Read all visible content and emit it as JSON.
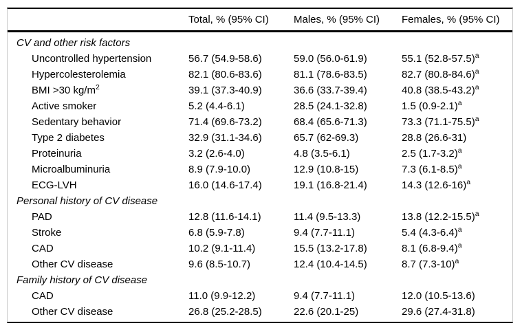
{
  "table": {
    "columns": [
      "",
      "Total, % (95% CI)",
      "Males, % (95% CI)",
      "Females, % (95% CI)"
    ],
    "sections": [
      {
        "title": "CV and other risk factors",
        "rows": [
          {
            "label": "Uncontrolled hypertension",
            "label_sup": "",
            "total": "56.7 (54.9-58.6)",
            "males": "59.0 (56.0-61.9)",
            "females": "55.1 (52.8-57.5)",
            "females_sup": "a"
          },
          {
            "label": "Hypercolesterolemia",
            "label_sup": "",
            "total": "82.1 (80.6-83.6)",
            "males": "81.1 (78.6-83.5)",
            "females": "82.7 (80.8-84.6)",
            "females_sup": "a"
          },
          {
            "label": "BMI >30 kg/m",
            "label_sup": "2",
            "total": "39.1 (37.3-40.9)",
            "males": "36.6 (33.7-39.4)",
            "females": "40.8 (38.5-43.2)",
            "females_sup": "a"
          },
          {
            "label": "Active smoker",
            "label_sup": "",
            "total": "5.2 (4.4-6.1)",
            "males": "28.5 (24.1-32.8)",
            "females": "1.5 (0.9-2.1)",
            "females_sup": "a"
          },
          {
            "label": "Sedentary behavior",
            "label_sup": "",
            "total": "71.4 (69.6-73.2)",
            "males": "68.4 (65.6-71.3)",
            "females": "73.3 (71.1-75.5)",
            "females_sup": "a"
          },
          {
            "label": "Type 2 diabetes",
            "label_sup": "",
            "total": "32.9 (31.1-34.6)",
            "males": "65.7 (62-69.3)",
            "females": "28.8 (26.6-31)",
            "females_sup": ""
          },
          {
            "label": "Proteinuria",
            "label_sup": "",
            "total": "3.2 (2.6-4.0)",
            "males": "4.8 (3.5-6.1)",
            "females": "2.5 (1.7-3.2)",
            "females_sup": "a"
          },
          {
            "label": "Microalbuminuria",
            "label_sup": "",
            "total": "8.9 (7.9-10.0)",
            "males": "12.9 (10.8-15)",
            "females": "7.3 (6.1-8.5)",
            "females_sup": "a"
          },
          {
            "label": "ECG-LVH",
            "label_sup": "",
            "total": "16.0 (14.6-17.4)",
            "males": "19.1 (16.8-21.4)",
            "females": "14.3 (12.6-16)",
            "females_sup": "a"
          }
        ]
      },
      {
        "title": "Personal history of CV disease",
        "rows": [
          {
            "label": "PAD",
            "label_sup": "",
            "total": "12.8 (11.6-14.1)",
            "males": "11.4 (9.5-13.3)",
            "females": "13.8 (12.2-15.5)",
            "females_sup": "a"
          },
          {
            "label": "Stroke",
            "label_sup": "",
            "total": "6.8 (5.9-7.8)",
            "males": "9.4 (7.7-11.1)",
            "females": "5.4 (4.3-6.4)",
            "females_sup": "a"
          },
          {
            "label": "CAD",
            "label_sup": "",
            "total": "10.2 (9.1-11.4)",
            "males": "15.5 (13.2-17.8)",
            "females": "8.1 (6.8-9.4)",
            "females_sup": "a"
          },
          {
            "label": "Other CV disease",
            "label_sup": "",
            "total": "9.6 (8.5-10.7)",
            "males": "12.4 (10.4-14.5)",
            "females": "8.7 (7.3-10)",
            "females_sup": "a"
          }
        ]
      },
      {
        "title": "Family history of CV disease",
        "rows": [
          {
            "label": "CAD",
            "label_sup": "",
            "total": "11.0 (9.9-12.2)",
            "males": "9.4 (7.7-11.1)",
            "females": "12.0 (10.5-13.6)",
            "females_sup": ""
          },
          {
            "label": "Other CV disease",
            "label_sup": "",
            "total": "26.8 (25.2-28.5)",
            "males": "22.6 (20.1-25)",
            "females": "29.6 (27.4-31.8)",
            "females_sup": ""
          }
        ]
      }
    ]
  },
  "colors": {
    "text": "#000000",
    "rule": "#000000",
    "outer_border": "#c9c9c9",
    "background": "#ffffff"
  }
}
